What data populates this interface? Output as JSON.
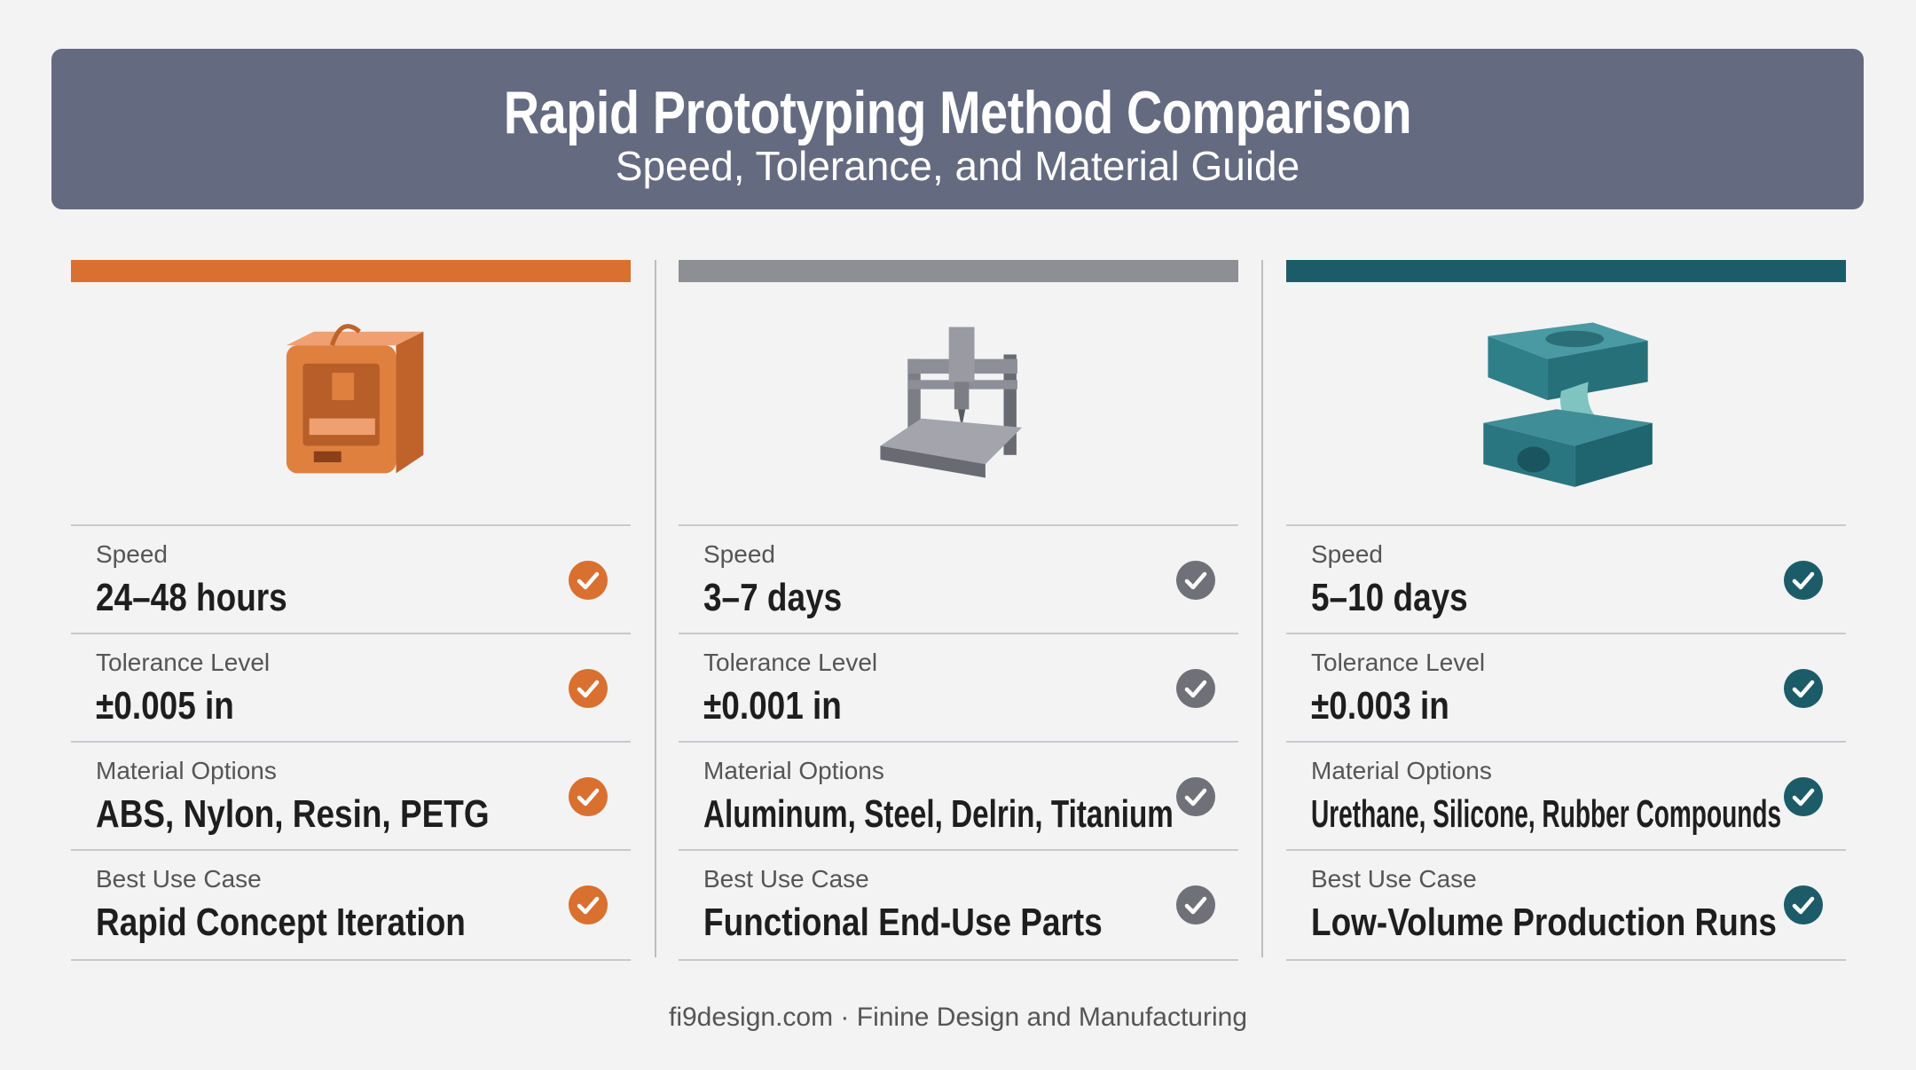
{
  "header": {
    "title": "Rapid Prototyping Method Comparison",
    "subtitle": "Speed, Tolerance, and Material Guide"
  },
  "columns": [
    {
      "rows": [
        {
          "label": "Speed",
          "value": "24–48 hours"
        },
        {
          "label": "Tolerance Level",
          "value": "±0.005 in"
        },
        {
          "label": "Material Options",
          "value": "ABS, Nylon, Resin, PETG"
        },
        {
          "label": "Best Use Case",
          "value": "Rapid Concept Iteration"
        }
      ]
    },
    {
      "rows": [
        {
          "label": "Speed",
          "value": "3–7 days"
        },
        {
          "label": "Tolerance Level",
          "value": "±0.001 in"
        },
        {
          "label": "Material Options",
          "value": "Aluminum, Steel, Delrin, Titanium"
        },
        {
          "label": "Best Use Case",
          "value": "Functional End-Use Parts"
        }
      ]
    },
    {
      "rows": [
        {
          "label": "Speed",
          "value": "5–10 days"
        },
        {
          "label": "Tolerance Level",
          "value": "±0.003 in"
        },
        {
          "label": "Material Options",
          "value": "Urethane, Silicone, Rubber Compounds"
        },
        {
          "label": "Best Use Case",
          "value": "Low-Volume Production Runs"
        }
      ]
    }
  ],
  "footer": "fi9design.com · Finine Design and Manufacturing"
}
